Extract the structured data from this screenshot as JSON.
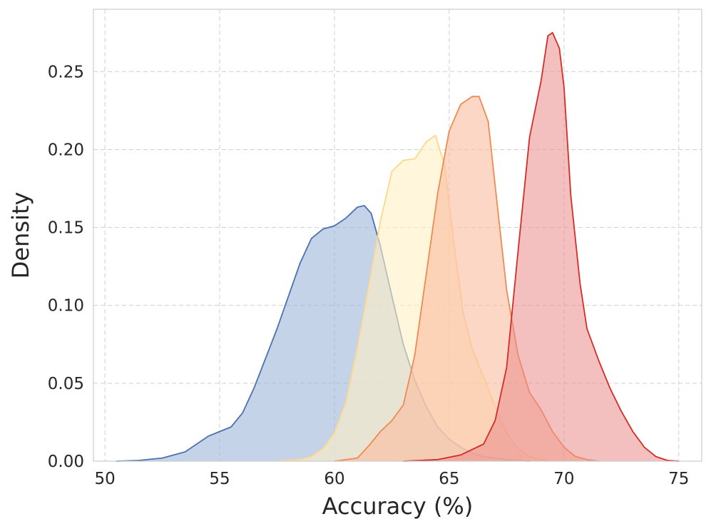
{
  "chart_data": {
    "type": "area",
    "title": "",
    "xlabel": "Accuracy (%)",
    "ylabel": "Density",
    "xlim": [
      49.5,
      76.0
    ],
    "ylim": [
      0,
      0.29
    ],
    "xticks": [
      50,
      55,
      60,
      65,
      70,
      75
    ],
    "yticks": [
      0.0,
      0.05,
      0.1,
      0.15,
      0.2,
      0.25
    ],
    "xtick_labels": [
      "50",
      "55",
      "60",
      "65",
      "70",
      "75"
    ],
    "ytick_labels": [
      "0.00",
      "0.05",
      "0.10",
      "0.15",
      "0.20",
      "0.25"
    ],
    "grid": true,
    "series": [
      {
        "line_color": "#4a72b0",
        "fill_color": "#9fb5d8",
        "fill_opacity": 0.6,
        "points": [
          [
            50.5,
            0.0
          ],
          [
            51.5,
            0.0005
          ],
          [
            52.5,
            0.002
          ],
          [
            53.5,
            0.006
          ],
          [
            54.0,
            0.011
          ],
          [
            54.5,
            0.016
          ],
          [
            55.0,
            0.019
          ],
          [
            55.5,
            0.022
          ],
          [
            56.0,
            0.031
          ],
          [
            56.5,
            0.047
          ],
          [
            57.0,
            0.066
          ],
          [
            57.5,
            0.085
          ],
          [
            58.0,
            0.106
          ],
          [
            58.5,
            0.127
          ],
          [
            59.0,
            0.143
          ],
          [
            59.5,
            0.149
          ],
          [
            60.0,
            0.151
          ],
          [
            60.5,
            0.156
          ],
          [
            61.0,
            0.163
          ],
          [
            61.3,
            0.164
          ],
          [
            61.6,
            0.159
          ],
          [
            62.0,
            0.138
          ],
          [
            62.5,
            0.106
          ],
          [
            63.0,
            0.075
          ],
          [
            63.5,
            0.052
          ],
          [
            64.0,
            0.035
          ],
          [
            64.5,
            0.022
          ],
          [
            65.0,
            0.014
          ],
          [
            65.5,
            0.009
          ],
          [
            66.0,
            0.005
          ],
          [
            66.5,
            0.003
          ],
          [
            67.0,
            0.002
          ],
          [
            67.5,
            0.001
          ],
          [
            68.0,
            0.0005
          ],
          [
            68.5,
            0.0
          ]
        ]
      },
      {
        "line_color": "#fed88a",
        "fill_color": "#fff0c4",
        "fill_opacity": 0.6,
        "points": [
          [
            57.5,
            0.0
          ],
          [
            58.5,
            0.001
          ],
          [
            59.0,
            0.003
          ],
          [
            59.5,
            0.008
          ],
          [
            60.0,
            0.018
          ],
          [
            60.5,
            0.038
          ],
          [
            61.0,
            0.073
          ],
          [
            61.5,
            0.113
          ],
          [
            62.0,
            0.154
          ],
          [
            62.5,
            0.186
          ],
          [
            63.0,
            0.193
          ],
          [
            63.5,
            0.194
          ],
          [
            64.0,
            0.205
          ],
          [
            64.4,
            0.209
          ],
          [
            64.8,
            0.19
          ],
          [
            65.2,
            0.14
          ],
          [
            65.6,
            0.096
          ],
          [
            66.0,
            0.072
          ],
          [
            66.5,
            0.054
          ],
          [
            67.0,
            0.035
          ],
          [
            67.5,
            0.018
          ],
          [
            68.0,
            0.008
          ],
          [
            68.5,
            0.003
          ],
          [
            69.0,
            0.001
          ],
          [
            69.5,
            0.0
          ]
        ]
      },
      {
        "line_color": "#f08a50",
        "fill_color": "#fcbda0",
        "fill_opacity": 0.6,
        "points": [
          [
            60.0,
            0.0
          ],
          [
            61.0,
            0.002
          ],
          [
            61.5,
            0.01
          ],
          [
            62.0,
            0.019
          ],
          [
            62.5,
            0.026
          ],
          [
            63.0,
            0.036
          ],
          [
            63.5,
            0.068
          ],
          [
            64.0,
            0.12
          ],
          [
            64.5,
            0.172
          ],
          [
            65.0,
            0.212
          ],
          [
            65.5,
            0.229
          ],
          [
            66.0,
            0.234
          ],
          [
            66.3,
            0.234
          ],
          [
            66.7,
            0.218
          ],
          [
            67.0,
            0.177
          ],
          [
            67.5,
            0.11
          ],
          [
            68.0,
            0.068
          ],
          [
            68.5,
            0.044
          ],
          [
            69.0,
            0.033
          ],
          [
            69.5,
            0.019
          ],
          [
            70.0,
            0.009
          ],
          [
            70.5,
            0.003
          ],
          [
            71.0,
            0.001
          ],
          [
            71.5,
            0.0
          ]
        ]
      },
      {
        "line_color": "#d42d27",
        "fill_color": "#e98a8a",
        "fill_opacity": 0.55,
        "points": [
          [
            63.0,
            0.0
          ],
          [
            64.5,
            0.001
          ],
          [
            65.5,
            0.004
          ],
          [
            66.5,
            0.011
          ],
          [
            67.0,
            0.026
          ],
          [
            67.5,
            0.06
          ],
          [
            68.0,
            0.135
          ],
          [
            68.5,
            0.208
          ],
          [
            69.0,
            0.244
          ],
          [
            69.3,
            0.273
          ],
          [
            69.5,
            0.275
          ],
          [
            69.8,
            0.265
          ],
          [
            70.0,
            0.24
          ],
          [
            70.3,
            0.17
          ],
          [
            70.7,
            0.114
          ],
          [
            71.0,
            0.085
          ],
          [
            71.5,
            0.065
          ],
          [
            72.0,
            0.047
          ],
          [
            72.5,
            0.032
          ],
          [
            73.0,
            0.019
          ],
          [
            73.5,
            0.009
          ],
          [
            74.0,
            0.003
          ],
          [
            74.5,
            0.0005
          ],
          [
            75.0,
            0.0
          ]
        ]
      }
    ]
  }
}
